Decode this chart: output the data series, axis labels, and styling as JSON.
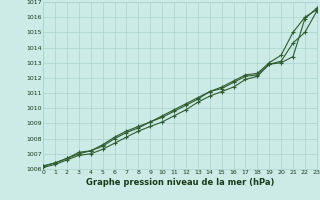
{
  "title": "Graphe pression niveau de la mer (hPa)",
  "background_color": "#cceae6",
  "grid_color": "#aad4cf",
  "line_color": "#2d5c2d",
  "xlim": [
    0,
    23
  ],
  "ylim": [
    1006,
    1017
  ],
  "ytick_values": [
    1006,
    1007,
    1008,
    1009,
    1010,
    1011,
    1012,
    1013,
    1014,
    1015,
    1016,
    1017
  ],
  "xtick_values": [
    0,
    1,
    2,
    3,
    4,
    5,
    6,
    7,
    8,
    9,
    10,
    11,
    12,
    13,
    14,
    15,
    16,
    17,
    18,
    19,
    20,
    21,
    22,
    23
  ],
  "series": [
    [
      1006.2,
      1006.4,
      1006.7,
      1007.1,
      1007.2,
      1007.6,
      1008.1,
      1008.5,
      1008.8,
      1009.1,
      1009.5,
      1009.9,
      1010.3,
      1010.7,
      1011.1,
      1011.4,
      1011.8,
      1012.2,
      1012.3,
      1013.0,
      1013.5,
      1015.0,
      1016.0,
      1016.5
    ],
    [
      1006.2,
      1006.4,
      1006.7,
      1007.0,
      1007.2,
      1007.5,
      1008.0,
      1008.4,
      1008.7,
      1009.1,
      1009.4,
      1009.8,
      1010.2,
      1010.6,
      1011.1,
      1011.3,
      1011.7,
      1012.1,
      1012.2,
      1012.9,
      1013.0,
      1013.4,
      1015.9,
      1016.6
    ],
    [
      1006.1,
      1006.3,
      1006.6,
      1006.9,
      1007.0,
      1007.3,
      1007.7,
      1008.1,
      1008.5,
      1008.8,
      1009.1,
      1009.5,
      1009.9,
      1010.4,
      1010.8,
      1011.1,
      1011.4,
      1011.9,
      1012.1,
      1012.9,
      1013.1,
      1014.3,
      1015.0,
      1016.4
    ]
  ]
}
